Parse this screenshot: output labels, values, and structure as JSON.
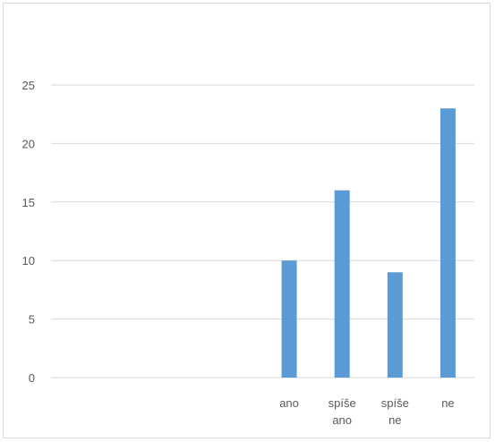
{
  "chart_data": {
    "type": "bar",
    "title": "",
    "xlabel": "",
    "ylabel": "",
    "categories": [
      "",
      "",
      "",
      "",
      "ano",
      "spíše ano",
      "spíše ne",
      "ne"
    ],
    "category_lines": [
      [],
      [],
      [],
      [],
      [
        "ano"
      ],
      [
        "spíše",
        "ano"
      ],
      [
        "spíše",
        "ne"
      ],
      [
        "ne"
      ]
    ],
    "values": [
      null,
      null,
      null,
      null,
      10,
      16,
      9,
      23
    ],
    "ylim": [
      0,
      25
    ],
    "yticks": [
      0,
      5,
      10,
      15,
      20,
      25
    ],
    "grid": true,
    "legend": "none",
    "bar_color": "#5b9bd5",
    "grid_color": "#d9d9d9"
  }
}
